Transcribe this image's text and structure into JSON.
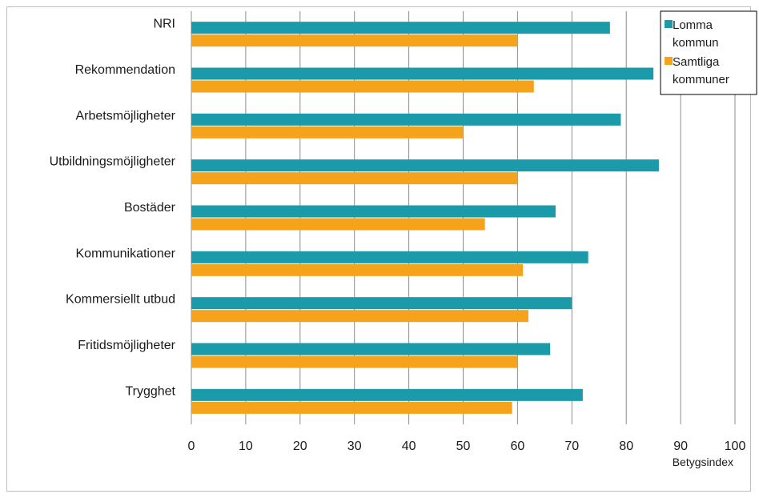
{
  "chart_data": {
    "type": "bar",
    "orientation": "horizontal",
    "categories": [
      "NRI",
      "Rekommendation",
      "Arbetsmöjligheter",
      "Utbildningsmöjligheter",
      "Bostäder",
      "Kommunikationer",
      "Kommersiellt utbud",
      "Fritidsmöjligheter",
      "Trygghet"
    ],
    "series": [
      {
        "name": "Lomma kommun",
        "name_lines": [
          "Lomma",
          "kommun"
        ],
        "color": "#1b9aaa",
        "values": [
          77,
          85,
          79,
          86,
          67,
          73,
          70,
          66,
          72
        ]
      },
      {
        "name": "Samtliga kommuner",
        "name_lines": [
          "Samtliga",
          "kommuner"
        ],
        "color": "#f5a31a",
        "values": [
          60,
          63,
          50,
          60,
          54,
          61,
          62,
          60,
          59
        ]
      }
    ],
    "xlim": [
      0,
      100
    ],
    "xticks": [
      "0",
      "10",
      "20",
      "30",
      "40",
      "50",
      "60",
      "70",
      "80",
      "90",
      "100"
    ],
    "xlabel": "Betygsindex",
    "ylabel": "",
    "title": "",
    "grid": "vertical",
    "legend": "top-right"
  }
}
